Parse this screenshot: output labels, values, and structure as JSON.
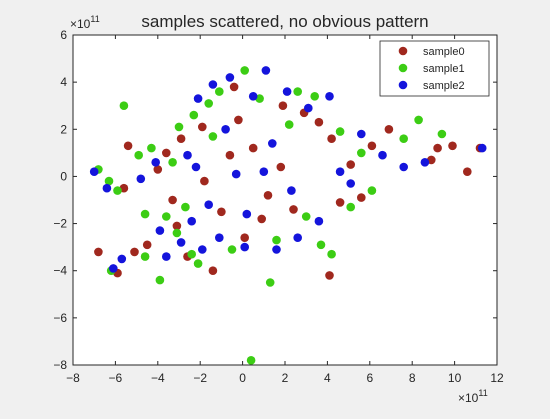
{
  "chart_data": {
    "type": "scatter",
    "title": "samples scattered, no obvious pattern",
    "x_exponent_label": "×10",
    "x_exponent_power": "11",
    "y_exponent_label": "×10",
    "y_exponent_power": "11",
    "xlim": [
      -8,
      12
    ],
    "ylim": [
      -8,
      6
    ],
    "x_ticks": [
      -8,
      -6,
      -4,
      -2,
      0,
      2,
      4,
      6,
      8,
      10,
      12
    ],
    "y_ticks": [
      -8,
      -6,
      -4,
      -2,
      0,
      2,
      4,
      6
    ],
    "grid": false,
    "legend_position": "top-right",
    "series": [
      {
        "name": "sample0",
        "color": "#a0281e",
        "points": [
          [
            -6.8,
            -3.2
          ],
          [
            -5.9,
            -4.1
          ],
          [
            -5.1,
            -3.2
          ],
          [
            -5.6,
            -0.5
          ],
          [
            -5.4,
            1.3
          ],
          [
            -4.5,
            -2.9
          ],
          [
            -4.0,
            0.3
          ],
          [
            -3.6,
            1.0
          ],
          [
            -3.3,
            -1.0
          ],
          [
            -3.1,
            -2.1
          ],
          [
            -2.6,
            -3.4
          ],
          [
            -2.9,
            1.6
          ],
          [
            -1.9,
            2.1
          ],
          [
            -1.4,
            -4.0
          ],
          [
            -0.4,
            3.8
          ],
          [
            1.9,
            3.0
          ],
          [
            2.9,
            2.7
          ],
          [
            3.6,
            2.3
          ],
          [
            4.1,
            -4.2
          ],
          [
            4.2,
            1.6
          ],
          [
            4.6,
            -1.1
          ],
          [
            5.1,
            0.5
          ],
          [
            5.6,
            -0.9
          ],
          [
            6.1,
            1.3
          ],
          [
            6.9,
            2.0
          ],
          [
            8.9,
            0.7
          ],
          [
            9.2,
            1.2
          ],
          [
            10.6,
            0.2
          ],
          [
            9.9,
            1.3
          ],
          [
            11.2,
            1.2
          ],
          [
            -1.0,
            -1.5
          ],
          [
            0.5,
            1.2
          ],
          [
            1.2,
            -0.8
          ],
          [
            -0.6,
            0.9
          ],
          [
            0.9,
            -1.8
          ],
          [
            1.8,
            0.4
          ],
          [
            -1.8,
            -0.2
          ],
          [
            2.4,
            -1.4
          ],
          [
            0.1,
            -2.6
          ],
          [
            -0.2,
            2.4
          ]
        ]
      },
      {
        "name": "sample1",
        "color": "#3ccd14",
        "points": [
          [
            -6.8,
            0.3
          ],
          [
            -6.3,
            -0.2
          ],
          [
            -6.2,
            -4.0
          ],
          [
            -5.6,
            3.0
          ],
          [
            -5.9,
            -0.6
          ],
          [
            -4.9,
            0.9
          ],
          [
            -4.6,
            -1.6
          ],
          [
            -4.6,
            -3.4
          ],
          [
            -4.3,
            1.2
          ],
          [
            -3.9,
            -4.4
          ],
          [
            -3.6,
            -1.7
          ],
          [
            -3.3,
            0.6
          ],
          [
            -3.0,
            2.1
          ],
          [
            -2.4,
            -3.3
          ],
          [
            -2.1,
            -3.7
          ],
          [
            -1.6,
            3.1
          ],
          [
            -1.1,
            3.6
          ],
          [
            0.1,
            4.5
          ],
          [
            0.4,
            -7.8
          ],
          [
            1.3,
            -4.5
          ],
          [
            2.6,
            3.6
          ],
          [
            3.4,
            3.4
          ],
          [
            3.7,
            -2.9
          ],
          [
            4.2,
            -3.3
          ],
          [
            4.6,
            1.9
          ],
          [
            5.1,
            -1.3
          ],
          [
            5.6,
            1.0
          ],
          [
            6.1,
            -0.6
          ],
          [
            7.6,
            1.6
          ],
          [
            8.3,
            2.4
          ],
          [
            9.4,
            1.8
          ],
          [
            -2.3,
            2.6
          ],
          [
            1.6,
            -2.7
          ],
          [
            -0.5,
            -3.1
          ],
          [
            2.2,
            2.2
          ],
          [
            -3.1,
            -2.4
          ],
          [
            3.0,
            -1.7
          ],
          [
            -1.4,
            1.7
          ],
          [
            0.8,
            3.3
          ],
          [
            -2.7,
            -1.3
          ]
        ]
      },
      {
        "name": "sample2",
        "color": "#1414dc",
        "points": [
          [
            -7.0,
            0.2
          ],
          [
            -6.4,
            -0.5
          ],
          [
            -6.1,
            -3.9
          ],
          [
            -5.7,
            -3.5
          ],
          [
            -4.8,
            -0.1
          ],
          [
            -4.1,
            0.6
          ],
          [
            -3.9,
            -2.3
          ],
          [
            -3.6,
            -3.4
          ],
          [
            -2.9,
            -2.8
          ],
          [
            -2.6,
            0.9
          ],
          [
            -2.4,
            -1.9
          ],
          [
            -2.1,
            3.3
          ],
          [
            -1.9,
            -3.1
          ],
          [
            -1.4,
            3.9
          ],
          [
            -1.1,
            -2.6
          ],
          [
            -0.6,
            4.2
          ],
          [
            0.1,
            -3.0
          ],
          [
            0.5,
            3.4
          ],
          [
            1.1,
            4.5
          ],
          [
            1.6,
            -3.1
          ],
          [
            2.1,
            3.6
          ],
          [
            2.6,
            -2.6
          ],
          [
            3.1,
            2.9
          ],
          [
            3.6,
            -1.9
          ],
          [
            4.1,
            3.4
          ],
          [
            4.6,
            0.2
          ],
          [
            5.1,
            -0.3
          ],
          [
            5.6,
            1.8
          ],
          [
            6.6,
            0.9
          ],
          [
            7.6,
            0.4
          ],
          [
            8.6,
            0.6
          ],
          [
            11.3,
            1.2
          ],
          [
            -1.6,
            -1.2
          ],
          [
            -0.8,
            2.0
          ],
          [
            1.4,
            1.4
          ],
          [
            2.3,
            -0.6
          ],
          [
            -2.2,
            0.4
          ],
          [
            0.2,
            -1.6
          ],
          [
            1.0,
            0.2
          ],
          [
            -0.3,
            0.1
          ]
        ]
      }
    ]
  }
}
